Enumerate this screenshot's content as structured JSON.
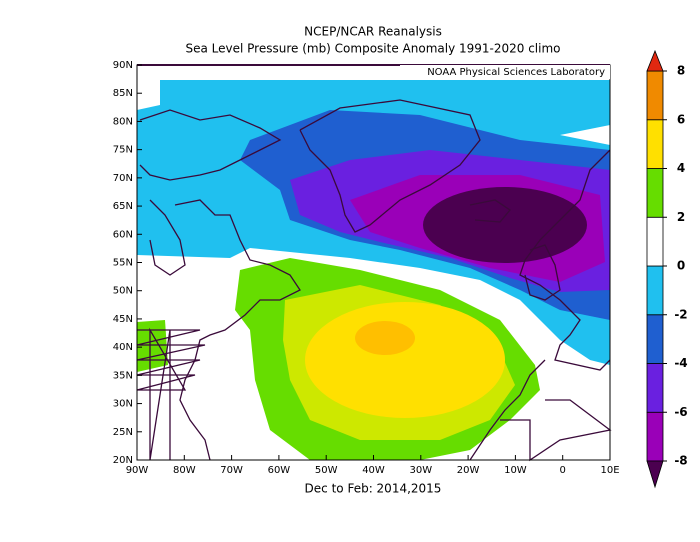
{
  "chart_data": {
    "type": "map",
    "title": "NCEP/NCAR Reanalysis",
    "subtitle": "Sea Level Pressure (mb) Composite Anomaly 1991-2020 climo",
    "credit": "NOAA Physical Sciences Laboratory",
    "xlabel": "Dec to Feb: 2014,2015",
    "xlim": [
      -90,
      10
    ],
    "ylim": [
      20,
      90
    ],
    "xticks": [
      {
        "value": -90,
        "label": "90W"
      },
      {
        "value": -80,
        "label": "80W"
      },
      {
        "value": -70,
        "label": "70W"
      },
      {
        "value": -60,
        "label": "60W"
      },
      {
        "value": -50,
        "label": "50W"
      },
      {
        "value": -40,
        "label": "40W"
      },
      {
        "value": -30,
        "label": "30W"
      },
      {
        "value": -20,
        "label": "20W"
      },
      {
        "value": -10,
        "label": "10W"
      },
      0,
      {
        "value": 10,
        "label": "10E"
      }
    ],
    "yticks": [
      {
        "value": 20,
        "label": "20N"
      },
      {
        "value": 25,
        "label": "25N"
      },
      {
        "value": 30,
        "label": "30N"
      },
      {
        "value": 35,
        "label": "35N"
      },
      {
        "value": 40,
        "label": "40N"
      },
      {
        "value": 45,
        "label": "45N"
      },
      {
        "value": 50,
        "label": "50N"
      },
      {
        "value": 55,
        "label": "55N"
      },
      {
        "value": 60,
        "label": "60N"
      },
      {
        "value": 65,
        "label": "65N"
      },
      {
        "value": 70,
        "label": "70N"
      },
      {
        "value": 75,
        "label": "75N"
      },
      {
        "value": 80,
        "label": "80N"
      },
      {
        "value": 85,
        "label": "85N"
      },
      {
        "value": 90,
        "label": "90N"
      }
    ],
    "colorbar": {
      "ticks": [
        -8,
        -6,
        -4,
        -2,
        0,
        2,
        4,
        6,
        8
      ],
      "colors": [
        "#9a00b8",
        "#6a20e0",
        "#1f5fd0",
        "#20c0ef",
        "#ffffff",
        "#66dd00",
        "#ffe000",
        "#f08a00"
      ],
      "under_color": "#4b0050",
      "over_color": "#e02810"
    }
  }
}
